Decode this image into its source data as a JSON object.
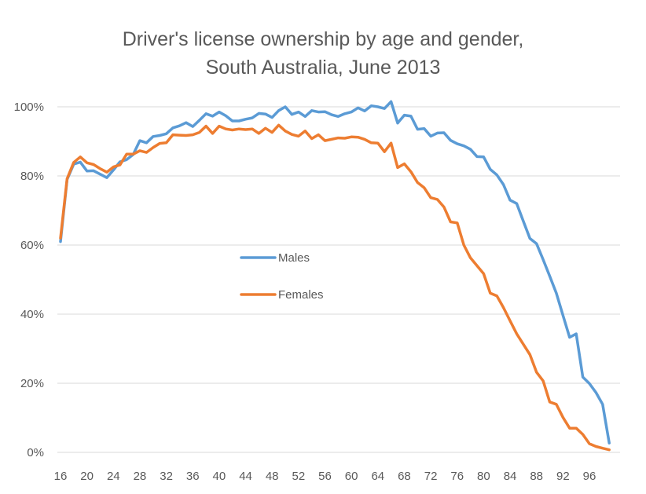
{
  "chart_data": {
    "type": "line",
    "title": [
      "Driver's license ownership by age and gender,",
      "South Australia, June 2013"
    ],
    "xlabel": "",
    "ylabel": "",
    "ylim": [
      0,
      1.0
    ],
    "xlim": [
      16,
      99
    ],
    "grid": true,
    "legend_position": "center-left",
    "x_ticks": [
      "16",
      "20",
      "24",
      "28",
      "32",
      "36",
      "40",
      "44",
      "48",
      "52",
      "56",
      "60",
      "64",
      "68",
      "72",
      "76",
      "80",
      "84",
      "88",
      "92",
      "96"
    ],
    "y_ticks": [
      "0%",
      "20%",
      "40%",
      "60%",
      "80%",
      "100%"
    ],
    "x": [
      16,
      17,
      18,
      19,
      20,
      21,
      22,
      23,
      24,
      25,
      26,
      27,
      28,
      29,
      30,
      31,
      32,
      33,
      34,
      35,
      36,
      37,
      38,
      39,
      40,
      41,
      42,
      43,
      44,
      45,
      46,
      47,
      48,
      49,
      50,
      51,
      52,
      53,
      54,
      55,
      56,
      57,
      58,
      59,
      60,
      61,
      62,
      63,
      64,
      65,
      66,
      67,
      68,
      69,
      70,
      71,
      72,
      73,
      74,
      75,
      76,
      77,
      78,
      79,
      80,
      81,
      82,
      83,
      84,
      85,
      86,
      87,
      88,
      89,
      90,
      91,
      92,
      93,
      94,
      95,
      96,
      97,
      98,
      99
    ],
    "series": [
      {
        "name": "Males",
        "color": "#5B9BD5",
        "values": [
          0.61,
          0.79,
          0.834,
          0.84,
          0.814,
          0.815,
          0.805,
          0.795,
          0.817,
          0.841,
          0.847,
          0.862,
          0.902,
          0.896,
          0.914,
          0.917,
          0.922,
          0.939,
          0.945,
          0.954,
          0.943,
          0.961,
          0.98,
          0.973,
          0.985,
          0.974,
          0.959,
          0.959,
          0.964,
          0.968,
          0.981,
          0.979,
          0.969,
          0.989,
          1.0,
          0.978,
          0.985,
          0.972,
          0.989,
          0.985,
          0.986,
          0.977,
          0.972,
          0.98,
          0.985,
          0.997,
          0.988,
          1.003,
          1.0,
          0.995,
          1.015,
          0.953,
          0.976,
          0.973,
          0.935,
          0.937,
          0.915,
          0.924,
          0.925,
          0.903,
          0.893,
          0.887,
          0.877,
          0.856,
          0.855,
          0.819,
          0.803,
          0.775,
          0.73,
          0.72,
          0.669,
          0.619,
          0.604,
          0.558,
          0.51,
          0.461,
          0.396,
          0.333,
          0.343,
          0.218,
          0.199,
          0.173,
          0.139,
          0.027
        ]
      },
      {
        "name": "Females",
        "color": "#ED7D31",
        "values": [
          0.62,
          0.792,
          0.839,
          0.855,
          0.838,
          0.833,
          0.821,
          0.811,
          0.826,
          0.832,
          0.863,
          0.863,
          0.873,
          0.868,
          0.882,
          0.894,
          0.896,
          0.919,
          0.918,
          0.917,
          0.919,
          0.926,
          0.944,
          0.923,
          0.944,
          0.936,
          0.933,
          0.936,
          0.934,
          0.936,
          0.923,
          0.938,
          0.926,
          0.947,
          0.93,
          0.92,
          0.915,
          0.93,
          0.908,
          0.919,
          0.902,
          0.906,
          0.91,
          0.909,
          0.913,
          0.912,
          0.906,
          0.896,
          0.895,
          0.87,
          0.895,
          0.824,
          0.835,
          0.812,
          0.781,
          0.766,
          0.737,
          0.732,
          0.71,
          0.667,
          0.664,
          0.6,
          0.563,
          0.54,
          0.517,
          0.461,
          0.453,
          0.419,
          0.381,
          0.343,
          0.313,
          0.283,
          0.232,
          0.207,
          0.146,
          0.139,
          0.101,
          0.07,
          0.07,
          0.052,
          0.025,
          0.017,
          0.012,
          0.0075
        ]
      }
    ]
  }
}
